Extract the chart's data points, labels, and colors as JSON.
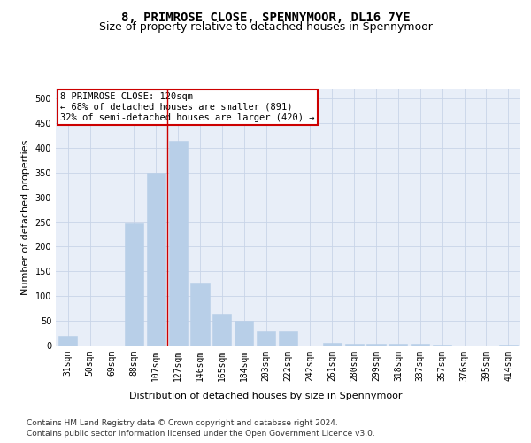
{
  "title": "8, PRIMROSE CLOSE, SPENNYMOOR, DL16 7YE",
  "subtitle": "Size of property relative to detached houses in Spennymoor",
  "xlabel": "Distribution of detached houses by size in Spennymoor",
  "ylabel": "Number of detached properties",
  "categories": [
    "31sqm",
    "50sqm",
    "69sqm",
    "88sqm",
    "107sqm",
    "127sqm",
    "146sqm",
    "165sqm",
    "184sqm",
    "203sqm",
    "222sqm",
    "242sqm",
    "261sqm",
    "280sqm",
    "299sqm",
    "318sqm",
    "337sqm",
    "357sqm",
    "376sqm",
    "395sqm",
    "414sqm"
  ],
  "values": [
    20,
    0,
    0,
    248,
    350,
    415,
    128,
    65,
    50,
    28,
    28,
    0,
    5,
    4,
    4,
    4,
    4,
    2,
    0,
    0,
    2
  ],
  "bar_color": "#b8cfe8",
  "bar_edge_color": "#b8cfe8",
  "grid_color": "#c8d4e8",
  "background_color": "#e8eef8",
  "vline_x": 4.5,
  "vline_color": "#cc0000",
  "annotation_text": "8 PRIMROSE CLOSE: 120sqm\n← 68% of detached houses are smaller (891)\n32% of semi-detached houses are larger (420) →",
  "annotation_box_color": "#ffffff",
  "annotation_box_edge_color": "#cc0000",
  "ylim": [
    0,
    520
  ],
  "yticks": [
    0,
    50,
    100,
    150,
    200,
    250,
    300,
    350,
    400,
    450,
    500
  ],
  "footer_line1": "Contains HM Land Registry data © Crown copyright and database right 2024.",
  "footer_line2": "Contains public sector information licensed under the Open Government Licence v3.0.",
  "title_fontsize": 10,
  "subtitle_fontsize": 9,
  "xlabel_fontsize": 8,
  "ylabel_fontsize": 8,
  "tick_fontsize": 7,
  "annot_fontsize": 7.5,
  "footer_fontsize": 6.5
}
